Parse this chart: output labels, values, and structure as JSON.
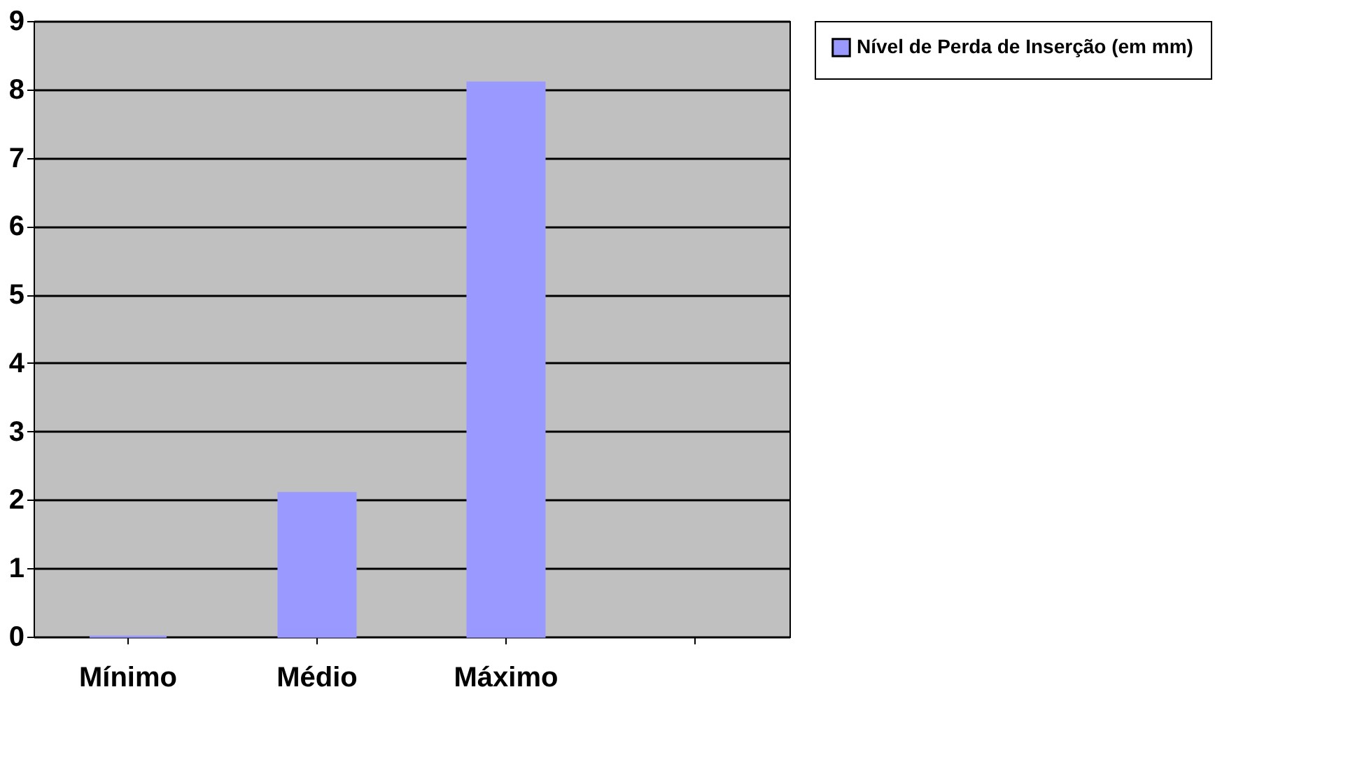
{
  "chart_data": {
    "type": "bar",
    "categories": [
      "Mínimo",
      "Médio",
      "Máximo",
      null
    ],
    "series": [
      {
        "name": "Nível de Perda de Inserção (em mm)",
        "color": "#9999ff",
        "values": [
          0,
          2.1,
          8.1,
          null
        ]
      }
    ],
    "ylim": [
      0,
      9
    ],
    "yticks": [
      0,
      1,
      2,
      3,
      4,
      5,
      6,
      7,
      8,
      9
    ],
    "grid": "y",
    "legend": "right"
  }
}
